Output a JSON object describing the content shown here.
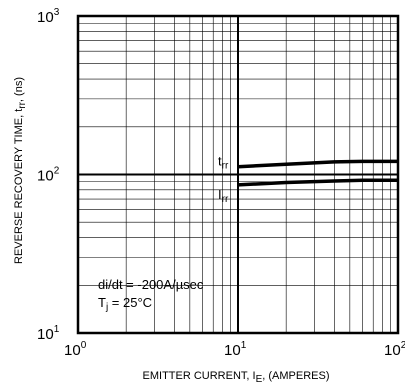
{
  "chart_data": {
    "type": "line",
    "x_scale": "log",
    "y_scale": "log",
    "xlim": [
      1,
      100
    ],
    "ylim": [
      10,
      1000
    ],
    "grid": true,
    "xlabel": {
      "main": "EMITTER CURRENT, I",
      "sub": "E",
      "tail": ", (AMPERES)"
    },
    "ylabel": {
      "main": "REVERSE RECOVERY TIME, t",
      "sub": "rr",
      "tail": ", (ns)"
    },
    "x_ticks": [
      {
        "value": 1,
        "base": "10",
        "exp": "0"
      },
      {
        "value": 10,
        "base": "10",
        "exp": "1"
      },
      {
        "value": 100,
        "base": "10",
        "exp": "2"
      }
    ],
    "y_ticks": [
      {
        "value": 10,
        "base": "10",
        "exp": "1"
      },
      {
        "value": 100,
        "base": "10",
        "exp": "2"
      },
      {
        "value": 1000,
        "base": "10",
        "exp": "3"
      }
    ],
    "series": [
      {
        "label_main": "t",
        "label_sub": "rr",
        "x": [
          10,
          20,
          40,
          60,
          100
        ],
        "y": [
          112,
          116,
          120,
          121,
          121
        ]
      },
      {
        "label_main": "I",
        "label_sub": "rr",
        "x": [
          10,
          20,
          40,
          60,
          100
        ],
        "y": [
          86,
          89,
          91,
          92,
          92
        ]
      }
    ],
    "annotations": [
      {
        "main": "di/dt = -200A/µsec"
      },
      {
        "main": "T",
        "sub": "j",
        "tail": " = 25°C"
      }
    ]
  }
}
